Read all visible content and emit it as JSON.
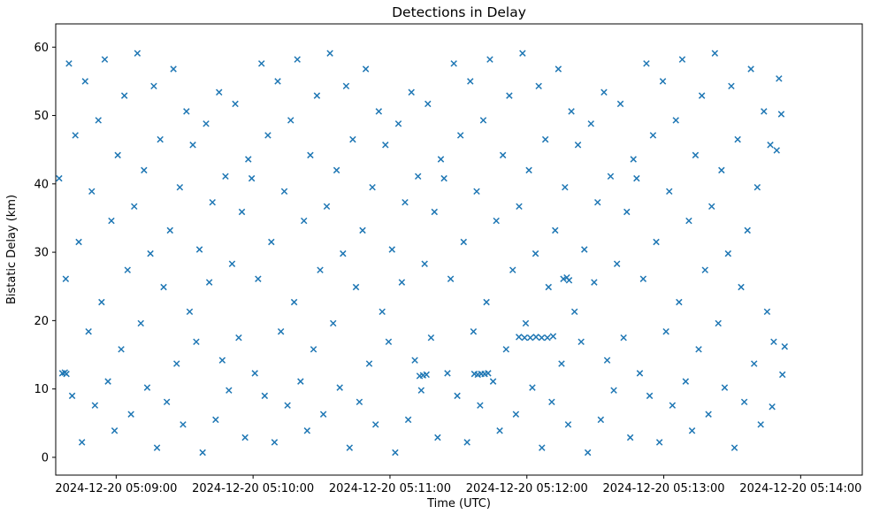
{
  "chart_data": {
    "type": "scatter",
    "title": "Detections in Delay",
    "xlabel": "Time (UTC)",
    "ylabel": "Bistatic Delay (km)",
    "marker": "x",
    "marker_color": "#1f77b4",
    "grid": false,
    "xlim_seconds": [
      -26.5,
      327
    ],
    "ylim": [
      -2.6,
      63.4
    ],
    "x_ticks_seconds": [
      0,
      60,
      120,
      180,
      240,
      300
    ],
    "x_tick_labels": [
      "2024-12-20 05:09:00",
      "2024-12-20 05:10:00",
      "2024-12-20 05:11:00",
      "2024-12-20 05:12:00",
      "2024-12-20 05:13:00",
      "2024-12-20 05:14:00"
    ],
    "y_ticks": [
      0,
      10,
      20,
      30,
      40,
      50,
      60
    ],
    "points_format": [
      "seconds_after_2024-12-20T05:09:00Z",
      "bistatic_delay_km"
    ],
    "points": [
      [
        -25.0,
        40.8
      ],
      [
        -23.6,
        12.3
      ],
      [
        -22.1,
        26.1
      ],
      [
        -20.7,
        57.6
      ],
      [
        -19.3,
        9.0
      ],
      [
        -17.9,
        47.1
      ],
      [
        -16.4,
        31.5
      ],
      [
        -15.0,
        2.2
      ],
      [
        -13.6,
        55.0
      ],
      [
        -12.1,
        18.4
      ],
      [
        -10.7,
        38.9
      ],
      [
        -9.3,
        7.6
      ],
      [
        -7.8,
        49.3
      ],
      [
        -6.4,
        22.7
      ],
      [
        -5.0,
        58.2
      ],
      [
        -3.6,
        11.1
      ],
      [
        -2.1,
        34.6
      ],
      [
        -0.7,
        3.9
      ],
      [
        0.7,
        44.2
      ],
      [
        2.2,
        15.8
      ],
      [
        3.6,
        52.9
      ],
      [
        5.0,
        27.4
      ],
      [
        6.5,
        6.3
      ],
      [
        7.9,
        36.7
      ],
      [
        9.3,
        59.1
      ],
      [
        10.8,
        19.6
      ],
      [
        12.2,
        42.0
      ],
      [
        13.6,
        10.2
      ],
      [
        15.0,
        29.8
      ],
      [
        16.5,
        54.3
      ],
      [
        17.9,
        1.4
      ],
      [
        19.3,
        46.5
      ],
      [
        20.8,
        24.9
      ],
      [
        22.2,
        8.1
      ],
      [
        23.6,
        33.2
      ],
      [
        25.1,
        56.8
      ],
      [
        26.5,
        13.7
      ],
      [
        27.9,
        39.5
      ],
      [
        29.3,
        4.8
      ],
      [
        30.8,
        50.6
      ],
      [
        32.2,
        21.3
      ],
      [
        33.6,
        45.7
      ],
      [
        35.1,
        16.9
      ],
      [
        36.5,
        30.4
      ],
      [
        37.9,
        0.7
      ],
      [
        39.4,
        48.8
      ],
      [
        40.8,
        25.6
      ],
      [
        42.2,
        37.3
      ],
      [
        43.6,
        5.5
      ],
      [
        45.1,
        53.4
      ],
      [
        46.5,
        14.2
      ],
      [
        47.9,
        41.1
      ],
      [
        49.4,
        9.8
      ],
      [
        50.8,
        28.3
      ],
      [
        52.2,
        51.7
      ],
      [
        53.7,
        17.5
      ],
      [
        55.1,
        35.9
      ],
      [
        56.5,
        2.9
      ],
      [
        57.9,
        43.6
      ],
      [
        59.4,
        40.8
      ],
      [
        60.8,
        12.3
      ],
      [
        62.2,
        26.1
      ],
      [
        63.7,
        57.6
      ],
      [
        65.1,
        9.0
      ],
      [
        66.5,
        47.1
      ],
      [
        68.0,
        31.5
      ],
      [
        69.4,
        2.2
      ],
      [
        70.8,
        55.0
      ],
      [
        72.2,
        18.4
      ],
      [
        73.7,
        38.9
      ],
      [
        75.1,
        7.6
      ],
      [
        76.5,
        49.3
      ],
      [
        78.0,
        22.7
      ],
      [
        79.4,
        58.2
      ],
      [
        80.8,
        11.1
      ],
      [
        82.3,
        34.6
      ],
      [
        83.7,
        3.9
      ],
      [
        85.1,
        44.2
      ],
      [
        86.5,
        15.8
      ],
      [
        88.0,
        52.9
      ],
      [
        89.4,
        27.4
      ],
      [
        90.8,
        6.3
      ],
      [
        92.3,
        36.7
      ],
      [
        93.7,
        59.1
      ],
      [
        95.1,
        19.6
      ],
      [
        96.6,
        42.0
      ],
      [
        98.0,
        10.2
      ],
      [
        99.4,
        29.8
      ],
      [
        100.8,
        54.3
      ],
      [
        102.3,
        1.4
      ],
      [
        103.7,
        46.5
      ],
      [
        105.1,
        24.9
      ],
      [
        106.6,
        8.1
      ],
      [
        108.0,
        33.2
      ],
      [
        109.4,
        56.8
      ],
      [
        110.9,
        13.7
      ],
      [
        112.3,
        39.5
      ],
      [
        113.7,
        4.8
      ],
      [
        115.1,
        50.6
      ],
      [
        116.6,
        21.3
      ],
      [
        118.0,
        45.7
      ],
      [
        119.4,
        16.9
      ],
      [
        120.9,
        30.4
      ],
      [
        122.3,
        0.7
      ],
      [
        123.7,
        48.8
      ],
      [
        125.2,
        25.6
      ],
      [
        126.6,
        37.3
      ],
      [
        128.0,
        5.5
      ],
      [
        129.4,
        53.4
      ],
      [
        130.9,
        14.2
      ],
      [
        132.3,
        41.1
      ],
      [
        133.7,
        9.8
      ],
      [
        135.2,
        28.3
      ],
      [
        136.6,
        51.7
      ],
      [
        138.0,
        17.5
      ],
      [
        139.5,
        35.9
      ],
      [
        140.9,
        2.9
      ],
      [
        142.3,
        43.6
      ],
      [
        143.7,
        40.8
      ],
      [
        145.2,
        12.3
      ],
      [
        146.6,
        26.1
      ],
      [
        148.0,
        57.6
      ],
      [
        149.5,
        9.0
      ],
      [
        150.9,
        47.1
      ],
      [
        152.3,
        31.5
      ],
      [
        153.8,
        2.2
      ],
      [
        155.2,
        55.0
      ],
      [
        156.6,
        18.4
      ],
      [
        158.0,
        38.9
      ],
      [
        159.5,
        7.6
      ],
      [
        160.9,
        49.3
      ],
      [
        162.3,
        22.7
      ],
      [
        163.8,
        58.2
      ],
      [
        165.2,
        11.1
      ],
      [
        166.6,
        34.6
      ],
      [
        168.1,
        3.9
      ],
      [
        169.5,
        44.2
      ],
      [
        170.9,
        15.8
      ],
      [
        172.3,
        52.9
      ],
      [
        173.8,
        27.4
      ],
      [
        175.2,
        6.3
      ],
      [
        176.6,
        36.7
      ],
      [
        178.1,
        59.1
      ],
      [
        179.5,
        19.6
      ],
      [
        180.9,
        42.0
      ],
      [
        182.4,
        10.2
      ],
      [
        183.8,
        29.8
      ],
      [
        185.2,
        54.3
      ],
      [
        186.6,
        1.4
      ],
      [
        188.1,
        46.5
      ],
      [
        189.5,
        24.9
      ],
      [
        190.9,
        8.1
      ],
      [
        192.4,
        33.2
      ],
      [
        193.8,
        56.8
      ],
      [
        195.2,
        13.7
      ],
      [
        196.7,
        39.5
      ],
      [
        198.1,
        4.8
      ],
      [
        199.5,
        50.6
      ],
      [
        200.9,
        21.3
      ],
      [
        202.4,
        45.7
      ],
      [
        203.8,
        16.9
      ],
      [
        205.2,
        30.4
      ],
      [
        206.7,
        0.7
      ],
      [
        208.1,
        48.8
      ],
      [
        209.5,
        25.6
      ],
      [
        211.0,
        37.3
      ],
      [
        212.4,
        5.5
      ],
      [
        213.8,
        53.4
      ],
      [
        215.2,
        14.2
      ],
      [
        216.7,
        41.1
      ],
      [
        218.1,
        9.8
      ],
      [
        219.5,
        28.3
      ],
      [
        221.0,
        51.7
      ],
      [
        222.4,
        17.5
      ],
      [
        223.8,
        35.9
      ],
      [
        225.3,
        2.9
      ],
      [
        226.7,
        43.6
      ],
      [
        228.1,
        40.8
      ],
      [
        229.5,
        12.3
      ],
      [
        231.0,
        26.1
      ],
      [
        232.4,
        57.6
      ],
      [
        233.8,
        9.0
      ],
      [
        235.3,
        47.1
      ],
      [
        236.7,
        31.5
      ],
      [
        238.1,
        2.2
      ],
      [
        239.6,
        55.0
      ],
      [
        241.0,
        18.4
      ],
      [
        242.4,
        38.9
      ],
      [
        243.8,
        7.6
      ],
      [
        245.3,
        49.3
      ],
      [
        246.7,
        22.7
      ],
      [
        248.1,
        58.2
      ],
      [
        249.6,
        11.1
      ],
      [
        251.0,
        34.6
      ],
      [
        252.4,
        3.9
      ],
      [
        253.9,
        44.2
      ],
      [
        255.3,
        15.8
      ],
      [
        256.7,
        52.9
      ],
      [
        258.1,
        27.4
      ],
      [
        259.6,
        6.3
      ],
      [
        261.0,
        36.7
      ],
      [
        262.4,
        59.1
      ],
      [
        263.9,
        19.6
      ],
      [
        265.3,
        42.0
      ],
      [
        266.7,
        10.2
      ],
      [
        268.2,
        29.8
      ],
      [
        269.6,
        54.3
      ],
      [
        271.0,
        1.4
      ],
      [
        272.4,
        46.5
      ],
      [
        273.9,
        24.9
      ],
      [
        275.3,
        8.1
      ],
      [
        276.7,
        33.2
      ],
      [
        278.2,
        56.8
      ],
      [
        279.6,
        13.7
      ],
      [
        281.0,
        39.5
      ],
      [
        282.5,
        4.8
      ],
      [
        283.9,
        50.6
      ],
      [
        285.3,
        21.3
      ],
      [
        286.7,
        45.7
      ],
      [
        288.2,
        16.9
      ],
      [
        176.5,
        17.6
      ],
      [
        179.0,
        17.5
      ],
      [
        181.5,
        17.5
      ],
      [
        184.0,
        17.6
      ],
      [
        186.5,
        17.5
      ],
      [
        189.0,
        17.5
      ],
      [
        191.5,
        17.7
      ],
      [
        157.0,
        12.2
      ],
      [
        158.5,
        12.1
      ],
      [
        160.0,
        12.2
      ],
      [
        161.5,
        12.2
      ],
      [
        163.0,
        12.3
      ],
      [
        196.0,
        26.1
      ],
      [
        197.5,
        26.3
      ],
      [
        198.5,
        25.9
      ],
      [
        133.0,
        11.9
      ],
      [
        134.5,
        12.0
      ],
      [
        136.0,
        12.1
      ],
      [
        -22.5,
        12.4
      ],
      [
        -21.8,
        12.2
      ],
      [
        290.5,
        55.4
      ],
      [
        291.5,
        50.2
      ],
      [
        292.0,
        12.1
      ],
      [
        289.5,
        44.9
      ],
      [
        293.0,
        16.2
      ],
      [
        287.5,
        7.4
      ]
    ]
  }
}
